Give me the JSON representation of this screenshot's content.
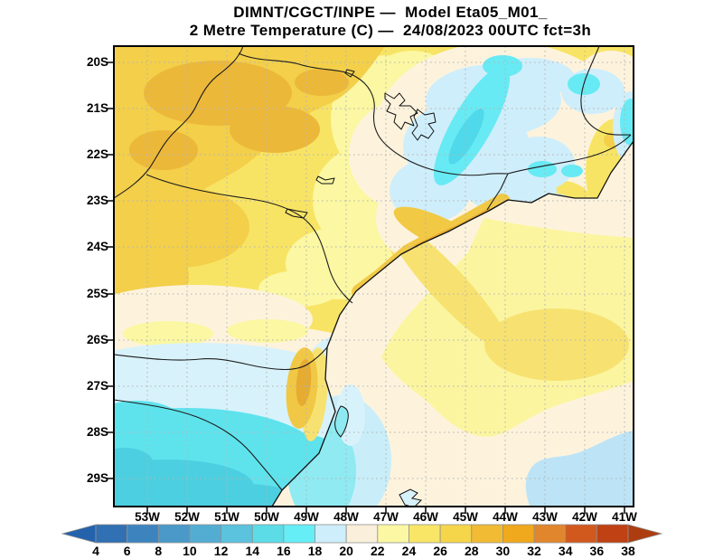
{
  "title": {
    "line1": "DIMNT/CGCT/INPE —  Model Eta05_M01_",
    "line2": "2 Metre Temperature (C) —  24/08/2023 00UTC fct=3h"
  },
  "map": {
    "lat_labels": [
      "20S",
      "21S",
      "22S",
      "23S",
      "24S",
      "25S",
      "26S",
      "27S",
      "28S",
      "29S"
    ],
    "lon_labels": [
      "53W",
      "52W",
      "51W",
      "50W",
      "49W",
      "48W",
      "47W",
      "46W",
      "45W",
      "44W",
      "43W",
      "42W",
      "41W"
    ]
  },
  "colorbar": {
    "tick_labels": [
      "4",
      "6",
      "8",
      "10",
      "12",
      "14",
      "16",
      "18",
      "20",
      "22",
      "24",
      "26",
      "28",
      "30",
      "32",
      "34",
      "36",
      "38"
    ],
    "segment_colors": [
      "#3070b3",
      "#3d84bf",
      "#4a99c8",
      "#53add3",
      "#5bc3dd",
      "#5cdce6",
      "#65eef6",
      "#cdeefa",
      "#faefdb",
      "#fbf7a3",
      "#f9e667",
      "#f5d54a",
      "#f1bb33",
      "#f0a81c",
      "#e2862d",
      "#d2591e",
      "#bf4114"
    ],
    "left_arrow_color": "#2463ab",
    "right_arrow_color": "#ad3d10"
  }
}
